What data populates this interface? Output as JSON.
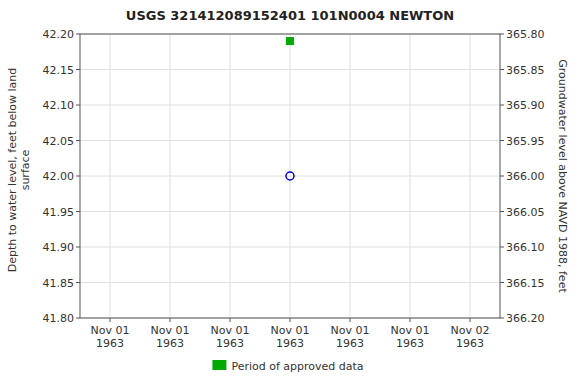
{
  "chart_data": {
    "type": "scatter",
    "title": "USGS 321412089152401 101N0004  NEWTON",
    "y_label": "Depth to water level, feet below land\n surface",
    "y2_label": "Groundwater level above NAVD 1988, feet",
    "categories": [
      "Nov 01\n1963",
      "Nov 01\n1963",
      "Nov 01\n1963",
      "Nov 01\n1963",
      "Nov 01\n1963",
      "Nov 01\n1963",
      "Nov 02\n1963"
    ],
    "series": [
      {
        "color": "#0000cc",
        "marker": "circle",
        "values": [
          null,
          null,
          null,
          42.0,
          null,
          null,
          null
        ]
      },
      {
        "name": "Period of approved data",
        "color": "#00aa00",
        "marker": "square",
        "values": [
          null,
          null,
          null,
          42.19,
          null,
          null,
          null
        ]
      }
    ],
    "ylim": [
      41.8,
      42.2
    ],
    "yticks": [
      {
        "value": 41.8,
        "label": "41.80"
      },
      41.85,
      {
        "value": 41.9,
        "label": "41.90"
      },
      41.95,
      {
        "value": 42.0,
        "label": "42.00"
      },
      42.05,
      {
        "value": 42.1,
        "label": "42.10"
      },
      42.15,
      {
        "value": 42.2,
        "label": "42.20"
      }
    ],
    "y2lim": [
      366.2,
      365.8
    ],
    "y2ticks": [
      {
        "value": 366.2,
        "label": "366.20"
      },
      366.15,
      {
        "value": 366.1,
        "label": "366.10"
      },
      366.05,
      {
        "value": 366.0,
        "label": "366.00"
      },
      365.95,
      {
        "value": 365.9,
        "label": "365.90"
      },
      365.85,
      {
        "value": 365.8,
        "label": "365.80"
      }
    ],
    "grid": true,
    "legend": "bottom"
  }
}
